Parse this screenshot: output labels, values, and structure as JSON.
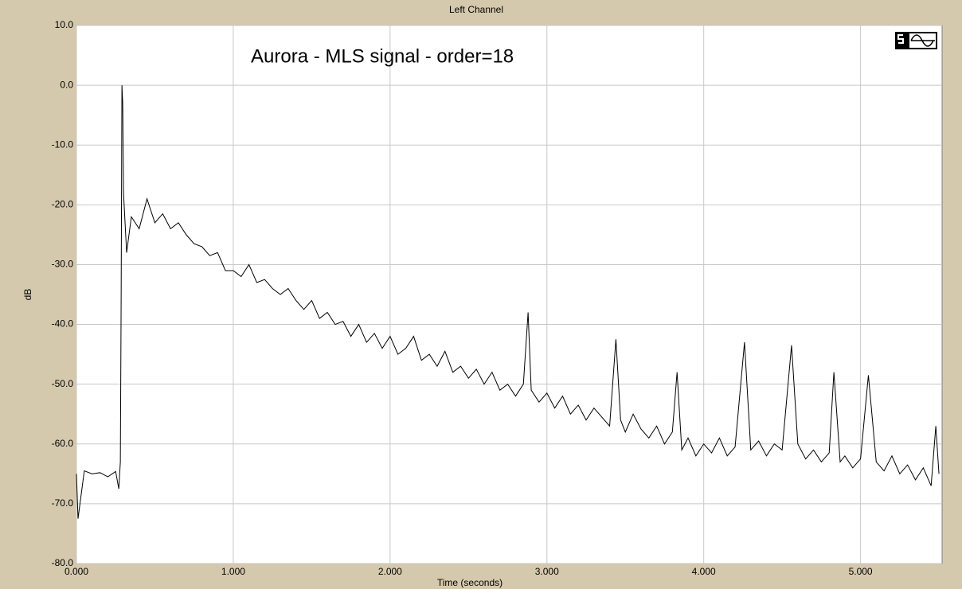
{
  "chart_data": {
    "type": "line",
    "title": "Left Channel",
    "annotation": "Aurora - MLS signal - order=18",
    "x_label": "Time (seconds)",
    "y_label": "dB",
    "color": "#000000",
    "grid": true,
    "x": [
      0.0,
      0.01,
      0.05,
      0.1,
      0.15,
      0.2,
      0.25,
      0.27,
      0.28,
      0.285,
      0.29,
      0.295,
      0.3,
      0.32,
      0.35,
      0.4,
      0.45,
      0.5,
      0.55,
      0.6,
      0.65,
      0.7,
      0.75,
      0.8,
      0.85,
      0.9,
      0.95,
      1.0,
      1.05,
      1.1,
      1.15,
      1.2,
      1.25,
      1.3,
      1.35,
      1.4,
      1.45,
      1.5,
      1.55,
      1.6,
      1.65,
      1.7,
      1.75,
      1.8,
      1.85,
      1.9,
      1.95,
      2.0,
      2.05,
      2.1,
      2.15,
      2.2,
      2.25,
      2.3,
      2.35,
      2.4,
      2.45,
      2.5,
      2.55,
      2.6,
      2.65,
      2.7,
      2.75,
      2.8,
      2.85,
      2.88,
      2.9,
      2.95,
      3.0,
      3.05,
      3.1,
      3.15,
      3.2,
      3.25,
      3.3,
      3.35,
      3.4,
      3.44,
      3.47,
      3.5,
      3.55,
      3.6,
      3.65,
      3.7,
      3.75,
      3.8,
      3.83,
      3.86,
      3.9,
      3.95,
      4.0,
      4.05,
      4.1,
      4.15,
      4.2,
      4.26,
      4.3,
      4.35,
      4.4,
      4.45,
      4.5,
      4.56,
      4.6,
      4.65,
      4.7,
      4.75,
      4.8,
      4.83,
      4.87,
      4.9,
      4.95,
      5.0,
      5.05,
      5.1,
      5.15,
      5.2,
      5.25,
      5.3,
      5.35,
      5.4,
      5.45,
      5.48,
      5.5
    ],
    "values": [
      -65,
      -72.5,
      -64.5,
      -65,
      -64.8,
      -65.5,
      -64.6,
      -67.5,
      -63,
      -36,
      0,
      -3,
      -18,
      -28,
      -22,
      -24,
      -19,
      -23,
      -21.5,
      -24,
      -23,
      -25,
      -26.5,
      -27,
      -28.5,
      -28,
      -31,
      -31,
      -32,
      -30,
      -33,
      -32.5,
      -34,
      -35,
      -34,
      -36,
      -37.5,
      -36,
      -39,
      -38,
      -40,
      -39.5,
      -42,
      -40,
      -43,
      -41.5,
      -44,
      -42,
      -45,
      -44,
      -42,
      -46,
      -45,
      -47,
      -44.5,
      -48,
      -47,
      -49,
      -47.5,
      -50,
      -48,
      -51,
      -50,
      -52,
      -50,
      -38,
      -51,
      -53,
      -51.5,
      -54,
      -52,
      -55,
      -53.5,
      -56,
      -54,
      -55.5,
      -57,
      -42.5,
      -56,
      -58,
      -55,
      -57.5,
      -59,
      -57,
      -60,
      -58,
      -48,
      -61,
      -59,
      -62,
      -60,
      -61.5,
      -59,
      -62,
      -60.5,
      -43,
      -61,
      -59.5,
      -62,
      -60,
      -61,
      -43.5,
      -60,
      -62.5,
      -61,
      -63,
      -61.5,
      -48,
      -63,
      -62,
      -64,
      -62.5,
      -48.5,
      -63,
      -64.5,
      -62,
      -65,
      -63.5,
      -66,
      -64,
      -67,
      -57,
      -65
    ],
    "xlim": [
      0,
      5.52
    ],
    "ylim": [
      -80,
      10
    ],
    "xticks": [
      {
        "value": 0,
        "label": "0.000"
      },
      {
        "value": 1,
        "label": "1.000"
      },
      {
        "value": 2,
        "label": "2.000"
      },
      {
        "value": 3,
        "label": "3.000"
      },
      {
        "value": 4,
        "label": "4.000"
      },
      {
        "value": 5,
        "label": "5.000"
      }
    ],
    "yticks": [
      {
        "value": 10,
        "label": "10.0"
      },
      {
        "value": 0,
        "label": "0.0"
      },
      {
        "value": -10,
        "label": "-10.0"
      },
      {
        "value": -20,
        "label": "-20.0"
      },
      {
        "value": -30,
        "label": "-30.0"
      },
      {
        "value": -40,
        "label": "-40.0"
      },
      {
        "value": -50,
        "label": "-50.0"
      },
      {
        "value": -60,
        "label": "-60.0"
      },
      {
        "value": -70,
        "label": "-70.0"
      },
      {
        "value": -80,
        "label": "-80.0"
      }
    ]
  }
}
